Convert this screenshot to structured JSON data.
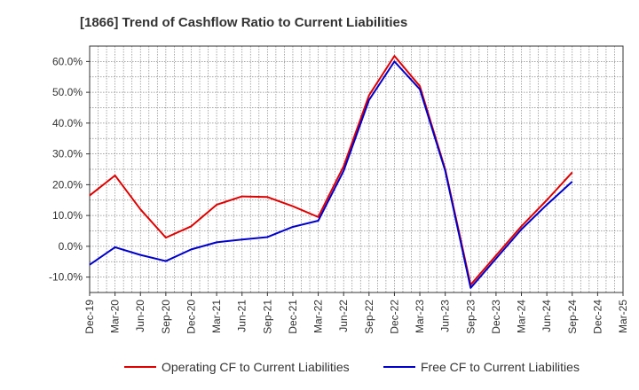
{
  "chart_data": {
    "type": "line",
    "title": "[1866]  Trend of Cashflow Ratio to Current Liabilities",
    "xlabel": "",
    "ylabel": "",
    "ylim": [
      -15,
      65
    ],
    "y_ticks": [
      "-10.0%",
      "0.0%",
      "10.0%",
      "20.0%",
      "30.0%",
      "40.0%",
      "50.0%",
      "60.0%"
    ],
    "y_tick_values": [
      -10,
      0,
      10,
      20,
      30,
      40,
      50,
      60
    ],
    "grid": true,
    "legend_position": "bottom",
    "categories": [
      "Dec-19",
      "Mar-20",
      "Jun-20",
      "Sep-20",
      "Dec-20",
      "Mar-21",
      "Jun-21",
      "Sep-21",
      "Dec-21",
      "Mar-22",
      "Jun-22",
      "Sep-22",
      "Dec-22",
      "Mar-23",
      "Jun-23",
      "Sep-23",
      "Dec-23",
      "Mar-24",
      "Jun-24",
      "Sep-24",
      "Dec-24",
      "Mar-25"
    ],
    "series": [
      {
        "name": "Operating CF to Current Liabilities",
        "color": "#e00000",
        "values": [
          16.5,
          23.0,
          12.0,
          2.8,
          6.5,
          13.5,
          16.2,
          16.0,
          13.0,
          9.5,
          26.0,
          49.0,
          61.8,
          52.0,
          25.0,
          -12.5,
          -3.0,
          6.5,
          15.0,
          24.0,
          null,
          null
        ]
      },
      {
        "name": "Free CF to Current Liabilities",
        "color": "#0000cc",
        "values": [
          -6.0,
          -0.3,
          -2.8,
          -4.8,
          -1.0,
          1.3,
          2.2,
          3.0,
          6.3,
          8.3,
          24.5,
          47.5,
          60.0,
          51.0,
          24.5,
          -13.5,
          -4.0,
          5.5,
          13.5,
          21.0,
          null,
          null
        ]
      }
    ]
  }
}
